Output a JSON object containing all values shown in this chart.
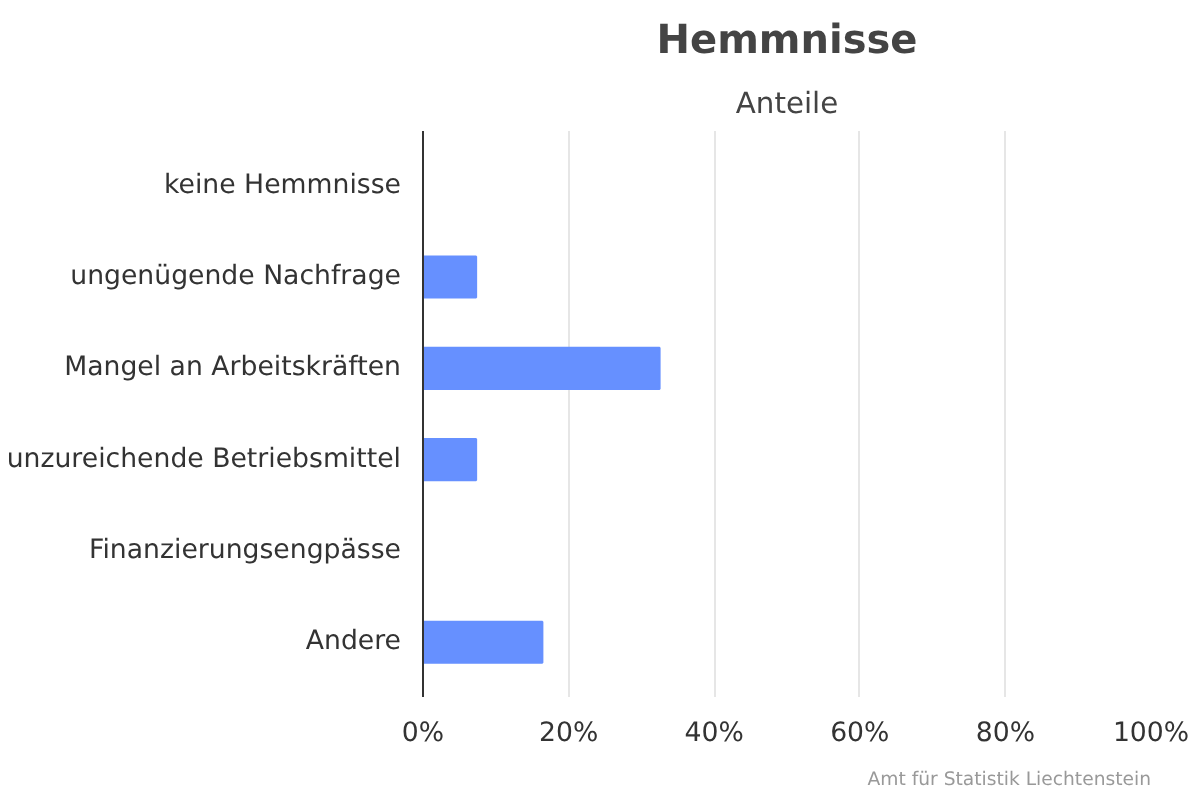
{
  "chart_data": {
    "type": "bar",
    "orientation": "horizontal",
    "title": "Hemmnisse",
    "subtitle": "Anteile",
    "categories": [
      "keine Hemmnisse",
      "ungenügende Nachfrage",
      "Mangel an Arbeitskräften",
      "unzureichende Betriebsmittel",
      "Finanzierungsengpässe",
      "Andere"
    ],
    "values": [
      0,
      7.3,
      32.5,
      7.3,
      0,
      16.4
    ],
    "color": "#6690ff",
    "xlim": [
      0,
      100
    ],
    "xticks": [
      {
        "value": 0,
        "label": "0%"
      },
      {
        "value": 20,
        "label": "20%"
      },
      {
        "value": 40,
        "label": "40%"
      },
      {
        "value": 60,
        "label": "60%"
      },
      {
        "value": 80,
        "label": "80%"
      },
      {
        "value": 100,
        "label": "100%"
      }
    ],
    "grid": "x",
    "annotations": [
      "Amt für Statistik Liechtenstein"
    ]
  }
}
